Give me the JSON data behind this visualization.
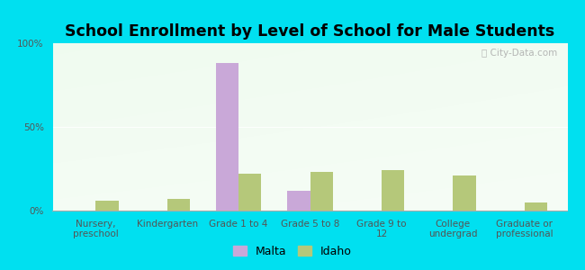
{
  "title": "School Enrollment by Level of School for Male Students",
  "categories": [
    "Nursery,\npreschool",
    "Kindergarten",
    "Grade 1 to 4",
    "Grade 5 to 8",
    "Grade 9 to\n12",
    "College\nundergrad",
    "Graduate or\nprofessional"
  ],
  "malta_values": [
    0,
    0,
    88,
    12,
    0,
    0,
    0
  ],
  "idaho_values": [
    6,
    7,
    22,
    23,
    24,
    21,
    5
  ],
  "malta_color": "#c9a8d8",
  "idaho_color": "#b5c87a",
  "background_outer": "#00e0f0",
  "ylim": [
    0,
    100
  ],
  "yticks": [
    0,
    50,
    100
  ],
  "ytick_labels": [
    "0%",
    "50%",
    "100%"
  ],
  "bar_width": 0.32,
  "title_fontsize": 12.5,
  "tick_fontsize": 7.5,
  "legend_fontsize": 9,
  "watermark_text": "ⓘ City-Data.com"
}
